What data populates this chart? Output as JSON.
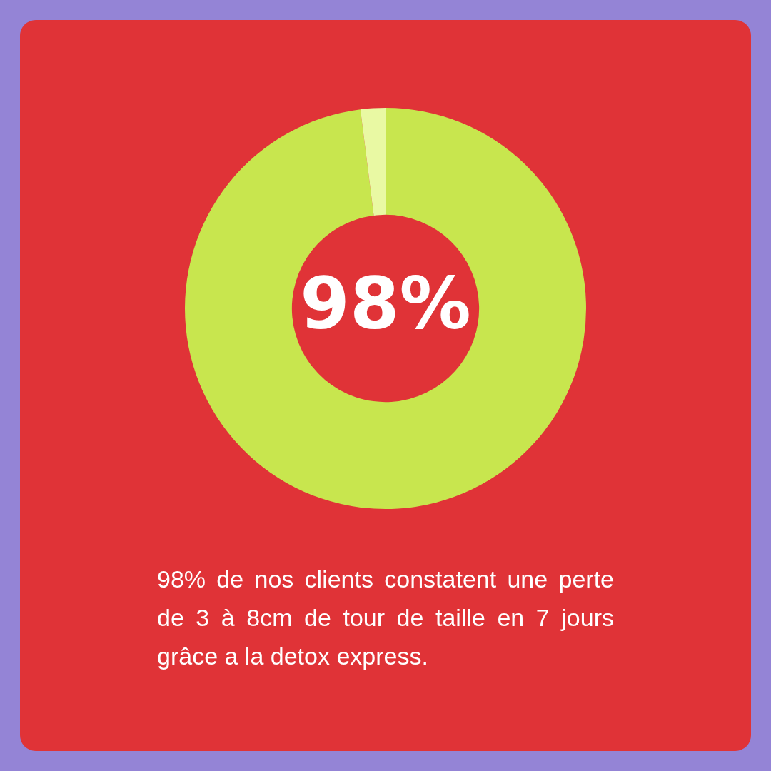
{
  "chart_data": {
    "type": "donut",
    "categories": [
      null,
      null
    ],
    "values": [
      98,
      2
    ],
    "colors": [
      "#c8e64e",
      "#e9f9a3"
    ],
    "value_labels": [
      "98%",
      null
    ],
    "annotations": [
      "98% de nos clients constatent une perte de 3 à 8cm de tour de taille en 7 jours grâce a la detox express."
    ]
  }
}
